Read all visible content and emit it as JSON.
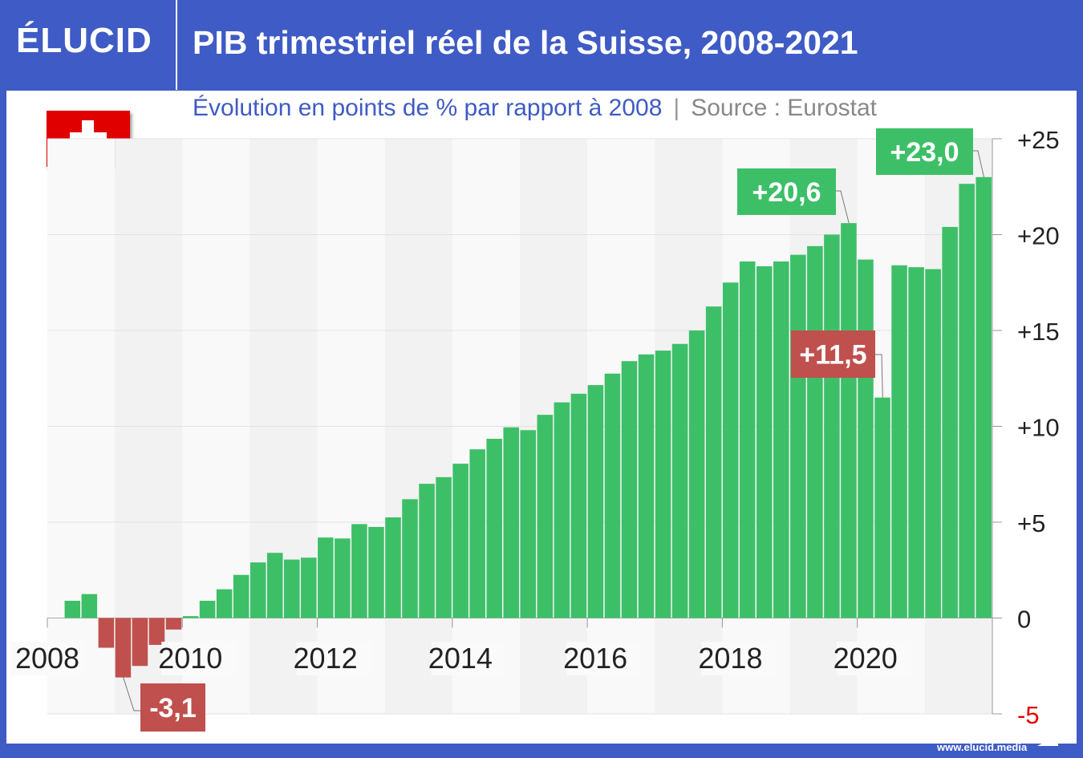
{
  "header": {
    "logo": "ÉLUCID",
    "title": "PIB trimestriel réel de la Suisse, 2008-2021"
  },
  "subtitle": {
    "text": "Évolution en points de % par rapport à 2008",
    "separator": "|",
    "source": "Source : Eurostat"
  },
  "footer": {
    "url": "www.elucid.media"
  },
  "flag": "switzerland-flag-icon",
  "colors": {
    "brand": "#3f5bc5",
    "positive": "#3dbf68",
    "negative": "#c0504d",
    "negative_tick": "#e00000"
  },
  "chart_data": {
    "type": "bar",
    "title": "PIB trimestriel réel de la Suisse, 2008-2021",
    "subtitle": "Évolution en points de % par rapport à 2008",
    "x_labels": [
      "2008",
      "2010",
      "2012",
      "2014",
      "2016",
      "2018",
      "2020"
    ],
    "y_ticks": [
      {
        "value": 25,
        "label": "+25"
      },
      {
        "value": 20,
        "label": "+20"
      },
      {
        "value": 15,
        "label": "+15"
      },
      {
        "value": 10,
        "label": "+10"
      },
      {
        "value": 5,
        "label": "+5"
      },
      {
        "value": 0,
        "label": "0"
      },
      {
        "value": -5,
        "label": "-5"
      }
    ],
    "ylim": [
      -5,
      25
    ],
    "grid": true,
    "y_axis_side": "right",
    "quarters_start": "2008-Q1",
    "values": [
      0,
      0.9,
      1.25,
      -1.55,
      -3.1,
      -2.5,
      -1.4,
      -0.6,
      0.1,
      0.9,
      1.5,
      2.25,
      2.9,
      3.4,
      3.05,
      3.15,
      4.2,
      4.15,
      4.9,
      4.75,
      5.25,
      6.2,
      7.0,
      7.35,
      8.05,
      8.8,
      9.35,
      9.95,
      9.8,
      10.6,
      11.25,
      11.7,
      12.15,
      12.75,
      13.4,
      13.75,
      13.95,
      14.3,
      15.0,
      16.25,
      17.5,
      18.6,
      18.35,
      18.6,
      18.95,
      19.4,
      20.0,
      20.6,
      18.7,
      11.5,
      18.4,
      18.3,
      18.2,
      20.4,
      22.65,
      23.0
    ],
    "annotations": [
      {
        "index": 4,
        "label": "-3,1",
        "type": "negative"
      },
      {
        "index": 47,
        "label": "+20,6",
        "type": "positive"
      },
      {
        "index": 49,
        "label": "+11,5",
        "type": "negative"
      },
      {
        "index": 55,
        "label": "+23,0",
        "type": "positive"
      }
    ]
  }
}
